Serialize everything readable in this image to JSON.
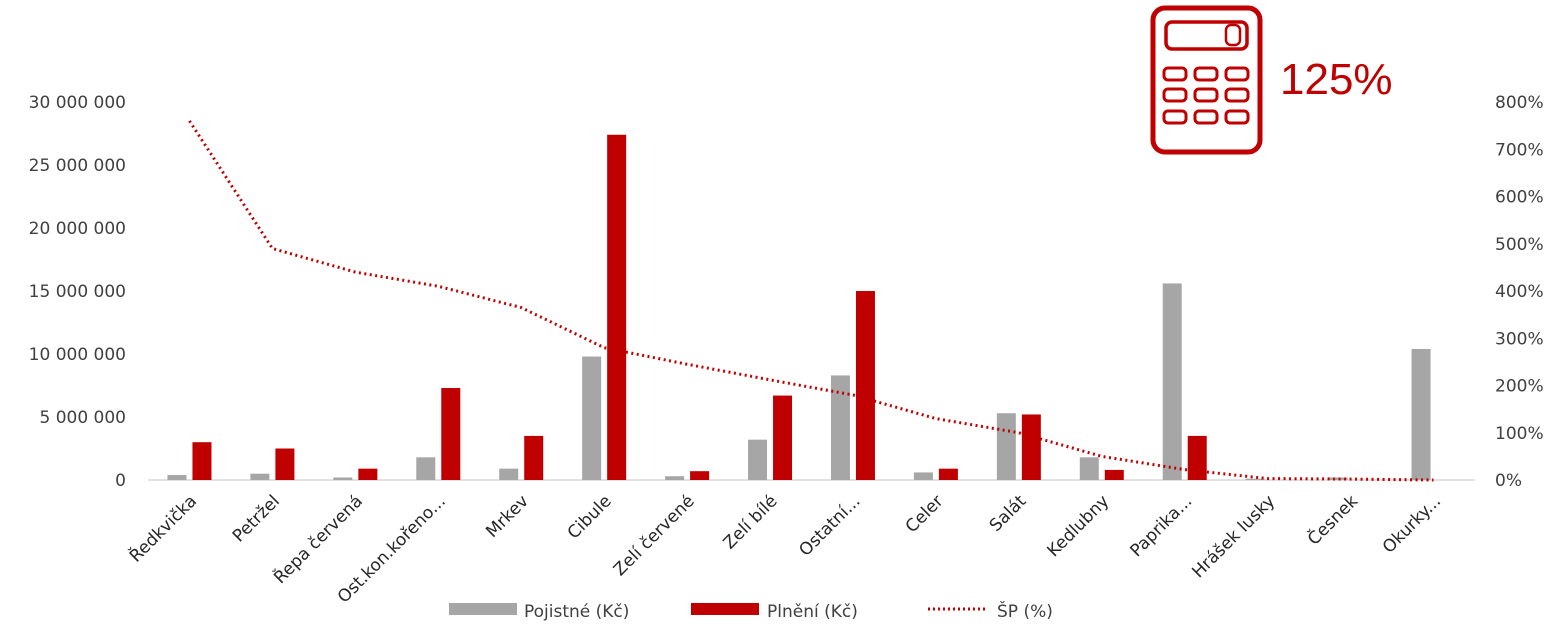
{
  "kpi": {
    "value": "125%",
    "icon": "calculator-icon"
  },
  "colors": {
    "premium": "#a6a6a6",
    "claims": "#c00000",
    "ratio": "#c00000",
    "axis": "#d9d9d9",
    "text": "#404040"
  },
  "chart_data": {
    "type": "bar",
    "categories": [
      "Ředkvička",
      "Petržel",
      "Řepa červená",
      "Ost.kon.kořeno...",
      "Mrkev",
      "Cibule",
      "Zelí červené",
      "Zelí bílé",
      "Ostatní...",
      "Celer",
      "Salát",
      "Kedlubny",
      "Paprika...",
      "Hrášek lusky",
      "Česnek",
      "Okurky..."
    ],
    "series": [
      {
        "name": "Pojistné (Kč)",
        "type": "bar",
        "axis": "left",
        "values": [
          400000,
          500000,
          200000,
          1800000,
          900000,
          9800000,
          300000,
          3200000,
          8300000,
          600000,
          5300000,
          1800000,
          15600000,
          100000,
          200000,
          10400000
        ]
      },
      {
        "name": "Plnění (Kč)",
        "type": "bar",
        "axis": "left",
        "values": [
          3000000,
          2500000,
          900000,
          7300000,
          3500000,
          27400000,
          700000,
          6700000,
          15000000,
          900000,
          5200000,
          800000,
          3500000,
          0,
          0,
          0
        ]
      },
      {
        "name": "ŠP (%)",
        "type": "line",
        "style": "dotted",
        "axis": "right",
        "values": [
          760,
          490,
          440,
          410,
          365,
          280,
          245,
          212,
          180,
          130,
          100,
          50,
          22,
          3,
          2,
          0
        ]
      }
    ],
    "y_left": {
      "min": 0,
      "max": 30000000,
      "ticks": [
        "0",
        "5 000 000",
        "10 000 000",
        "15 000 000",
        "20 000 000",
        "25 000 000",
        "30 000 000"
      ]
    },
    "y_right": {
      "min": 0,
      "max": 800,
      "ticks": [
        "0%",
        "100%",
        "200%",
        "300%",
        "400%",
        "500%",
        "600%",
        "700%",
        "800%"
      ]
    },
    "grid": false,
    "legend": "bottom"
  }
}
